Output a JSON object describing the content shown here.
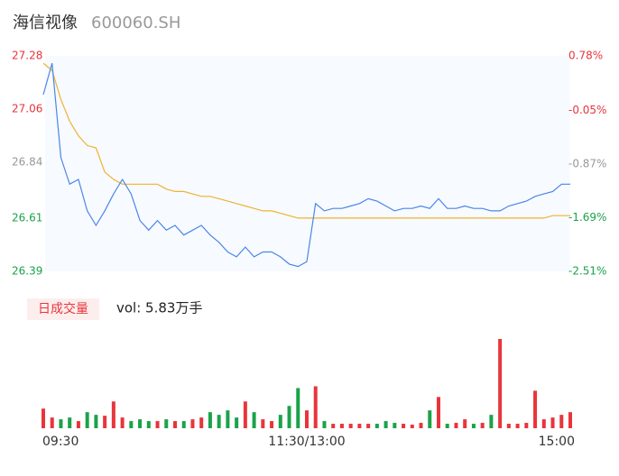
{
  "chart_data": {
    "type": "line",
    "title": "海信视像",
    "subtitle": "600060.SH",
    "categories": [
      "09:30",
      null,
      null,
      null,
      null,
      null,
      null,
      null,
      null,
      null,
      null,
      null,
      null,
      null,
      null,
      null,
      null,
      null,
      null,
      null,
      null,
      null,
      null,
      null,
      null,
      null,
      null,
      null,
      null,
      null,
      "11:30/13:00",
      null,
      null,
      null,
      null,
      null,
      null,
      null,
      null,
      null,
      null,
      null,
      null,
      null,
      null,
      null,
      null,
      null,
      null,
      null,
      null,
      null,
      null,
      null,
      null,
      null,
      null,
      null,
      null,
      null,
      "15:00"
    ],
    "series": [
      {
        "color": "#4a86e8",
        "values": [
          27.12,
          27.25,
          26.86,
          26.75,
          26.77,
          26.64,
          26.58,
          26.64,
          26.71,
          26.77,
          26.71,
          26.6,
          26.56,
          26.6,
          26.56,
          26.58,
          26.54,
          26.56,
          26.58,
          26.54,
          26.51,
          26.47,
          26.45,
          26.49,
          26.45,
          26.47,
          26.47,
          26.45,
          26.42,
          26.41,
          26.43,
          26.67,
          26.64,
          26.65,
          26.65,
          26.66,
          26.67,
          26.69,
          26.68,
          26.66,
          26.64,
          26.65,
          26.65,
          26.66,
          26.65,
          26.69,
          26.65,
          26.65,
          26.66,
          26.65,
          26.65,
          26.64,
          26.64,
          26.66,
          26.67,
          26.68,
          26.7,
          26.71,
          26.72,
          26.75,
          26.75
        ]
      },
      {
        "color": "#f0b232",
        "values": [
          27.25,
          27.22,
          27.1,
          27.01,
          26.95,
          26.91,
          26.9,
          26.8,
          26.77,
          26.75,
          26.75,
          26.75,
          26.75,
          26.75,
          26.73,
          26.72,
          26.72,
          26.71,
          26.7,
          26.7,
          26.69,
          26.68,
          26.67,
          26.66,
          26.65,
          26.64,
          26.64,
          26.63,
          26.62,
          26.61,
          26.61,
          26.61,
          26.61,
          26.61,
          26.61,
          26.61,
          26.61,
          26.61,
          26.61,
          26.61,
          26.61,
          26.61,
          26.61,
          26.61,
          26.61,
          26.61,
          26.61,
          26.61,
          26.61,
          26.61,
          26.61,
          26.61,
          26.61,
          26.61,
          26.61,
          26.61,
          26.61,
          26.61,
          26.62,
          26.62,
          26.62
        ]
      }
    ],
    "ylim": [
      26.39,
      27.28
    ],
    "yticks": [
      27.28,
      27.06,
      26.84,
      26.61,
      26.39
    ],
    "y2lim": [
      -2.51,
      0.78
    ],
    "y2ticks": [
      {
        "value": 0.78,
        "label": "0.78%"
      },
      {
        "value": -0.05,
        "label": "-0.05%"
      },
      {
        "value": -0.87,
        "label": "-0.87%"
      },
      {
        "value": -1.69,
        "label": "-1.69%"
      },
      {
        "value": -2.51,
        "label": "-2.51%"
      }
    ],
    "ytick_colors": [
      "#e8353b",
      "#e8353b",
      "#999999",
      "#1aa34a",
      "#1aa34a"
    ],
    "up_color": "#e8353b",
    "down_color": "#1aa34a",
    "volume": {
      "type": "bar",
      "label": "日成交量",
      "annotation": "vol: 5.83万手",
      "ylim": [
        0,
        100
      ],
      "values": [
        22,
        12,
        10,
        12,
        8,
        18,
        15,
        14,
        30,
        12,
        8,
        10,
        8,
        8,
        10,
        8,
        8,
        10,
        12,
        18,
        15,
        20,
        12,
        30,
        18,
        10,
        8,
        15,
        25,
        45,
        20,
        47,
        8,
        5,
        5,
        5,
        5,
        5,
        5,
        8,
        6,
        5,
        4,
        6,
        20,
        35,
        5,
        6,
        10,
        5,
        6,
        15,
        100,
        5,
        5,
        6,
        42,
        10,
        12,
        15,
        18
      ]
    }
  }
}
